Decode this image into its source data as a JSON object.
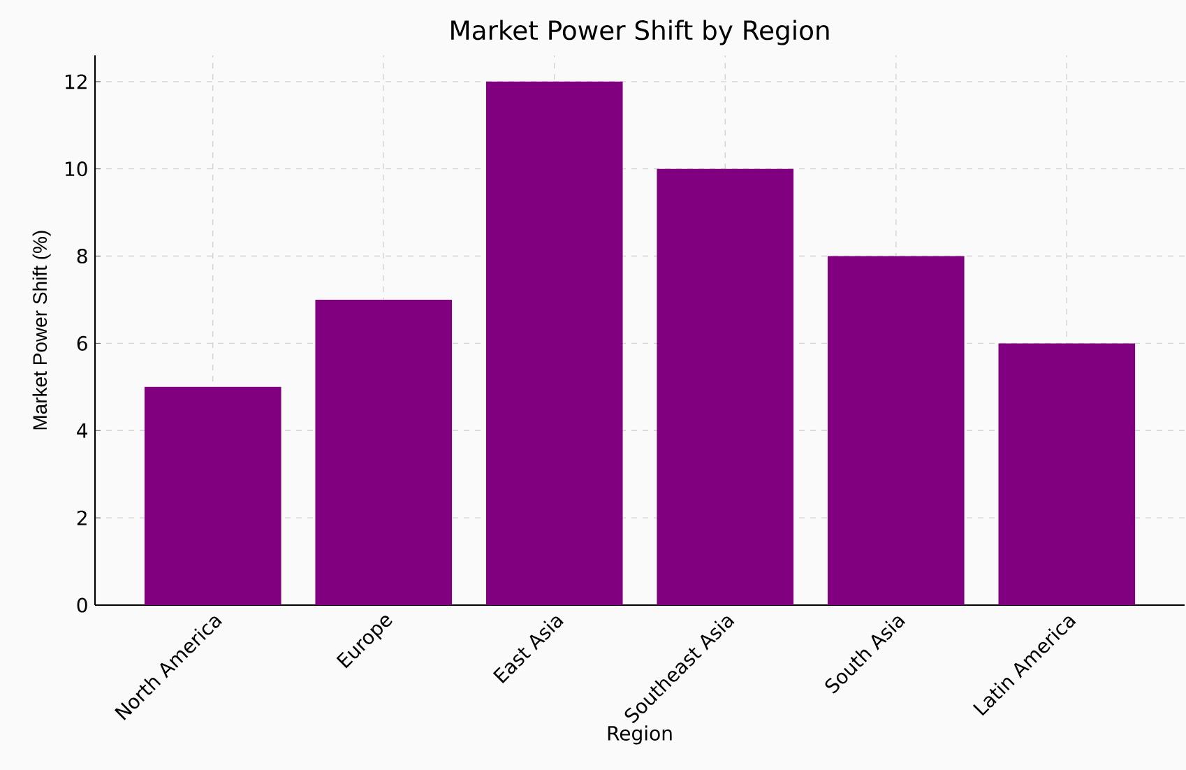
{
  "chart_data": {
    "type": "bar",
    "title": "Market Power Shift by Region",
    "xlabel": "Region",
    "ylabel": "Market Power Shift (%)",
    "categories": [
      "North America",
      "Europe",
      "East Asia",
      "Southeast Asia",
      "South Asia",
      "Latin America"
    ],
    "values": [
      5,
      7,
      12,
      10,
      8,
      6
    ],
    "color": "#800080",
    "ylim": [
      0,
      12.6
    ],
    "yticks": [
      0,
      2,
      4,
      6,
      8,
      10,
      12
    ],
    "grid": true
  }
}
